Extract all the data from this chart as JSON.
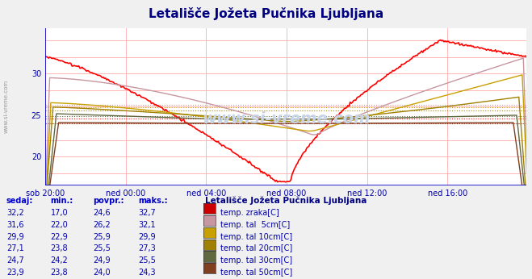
{
  "title": "Letališče Jožeta Pučnika Ljubljana",
  "title_color": "#000080",
  "bg_color": "#f0f0f0",
  "plot_bg_color": "#ffffff",
  "grid_color": "#ffaaaa",
  "x_ticks": [
    "sob 20:00",
    "ned 00:00",
    "ned 04:00",
    "ned 08:00",
    "ned 12:00",
    "ned 16:00"
  ],
  "x_tick_positions": [
    0,
    72,
    144,
    216,
    288,
    360
  ],
  "total_points": 432,
  "ylim_min": 16.5,
  "ylim_max": 35.5,
  "yticks": [
    20,
    25,
    30
  ],
  "tick_color": "#0000aa",
  "watermark": "www.si-vreme.com",
  "watermark_color": "#c8d4e8",
  "series_colors": [
    "#ff0000",
    "#c896a0",
    "#c8a000",
    "#a08000",
    "#606840",
    "#804020"
  ],
  "series_swatch": [
    "#cc0000",
    "#c896a0",
    "#c8a000",
    "#a08000",
    "#606840",
    "#804020"
  ],
  "series_labels": [
    "temp. zraka[C]",
    "temp. tal  5cm[C]",
    "temp. tal 10cm[C]",
    "temp. tal 20cm[C]",
    "temp. tal 30cm[C]",
    "temp. tal 50cm[C]"
  ],
  "series_sedaj": [
    "32,2",
    "31,6",
    "29,9",
    "27,1",
    "24,7",
    "23,9"
  ],
  "series_min": [
    "17,0",
    "22,0",
    "22,9",
    "23,8",
    "24,2",
    "23,8"
  ],
  "series_povpr": [
    "24,6",
    "26,2",
    "25,9",
    "25,5",
    "24,9",
    "24,0"
  ],
  "series_maks": [
    "32,7",
    "32,1",
    "29,9",
    "27,3",
    "25,5",
    "24,3"
  ],
  "povpr_values": [
    24.6,
    26.2,
    25.9,
    25.5,
    24.9,
    24.0
  ],
  "table_headers": [
    "sedaj:",
    "min.:",
    "povpr.:",
    "maks.:"
  ],
  "header_color": "#0000cc",
  "val_color": "#0000aa",
  "legend_title": "Letališče Jožeta Pučnika Ljubljana",
  "legend_title_color": "#000080"
}
